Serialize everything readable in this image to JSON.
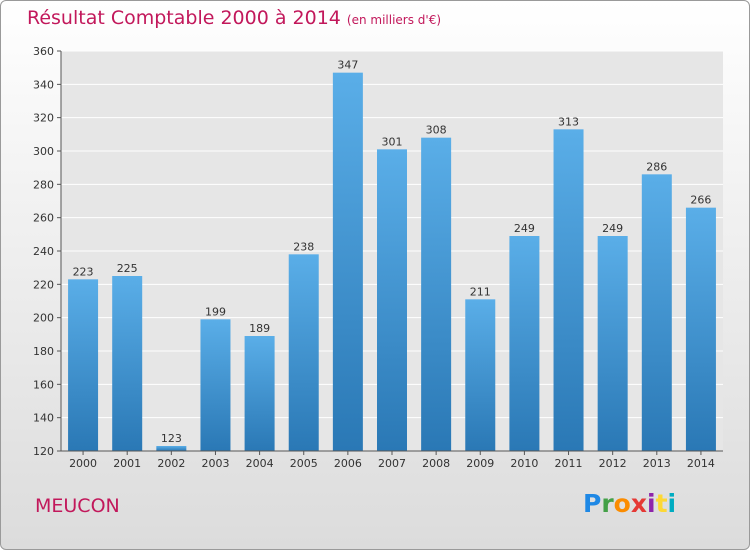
{
  "header": {
    "title": "Résultat Comptable 2000 à 2014",
    "subtitle": "(en milliers d'€)"
  },
  "commune": "MEUCON",
  "logo": {
    "text": "Proxiti",
    "letter_colors": [
      "#1e88e5",
      "#43a047",
      "#fb8c00",
      "#e53935",
      "#8e24aa",
      "#fdd835",
      "#00acc1"
    ]
  },
  "colors": {
    "bar_top": "#5aaee8",
    "bar_bottom": "#2a78b5",
    "accent": "#c2185b",
    "grid": "#ffffff"
  },
  "chart_data": {
    "type": "bar",
    "title": "Résultat Comptable 2000 à 2014",
    "subtitle": "(en milliers d'€)",
    "categories": [
      "2000",
      "2001",
      "2002",
      "2003",
      "2004",
      "2005",
      "2006",
      "2007",
      "2008",
      "2009",
      "2010",
      "2011",
      "2012",
      "2013",
      "2014"
    ],
    "values": [
      223,
      225,
      123,
      199,
      189,
      238,
      347,
      301,
      308,
      211,
      249,
      313,
      249,
      286,
      266
    ],
    "ylim": [
      120,
      360
    ],
    "yticks": [
      120,
      140,
      160,
      180,
      200,
      220,
      240,
      260,
      280,
      300,
      320,
      340,
      360
    ],
    "grid": true,
    "xlabel": "",
    "ylabel": ""
  }
}
